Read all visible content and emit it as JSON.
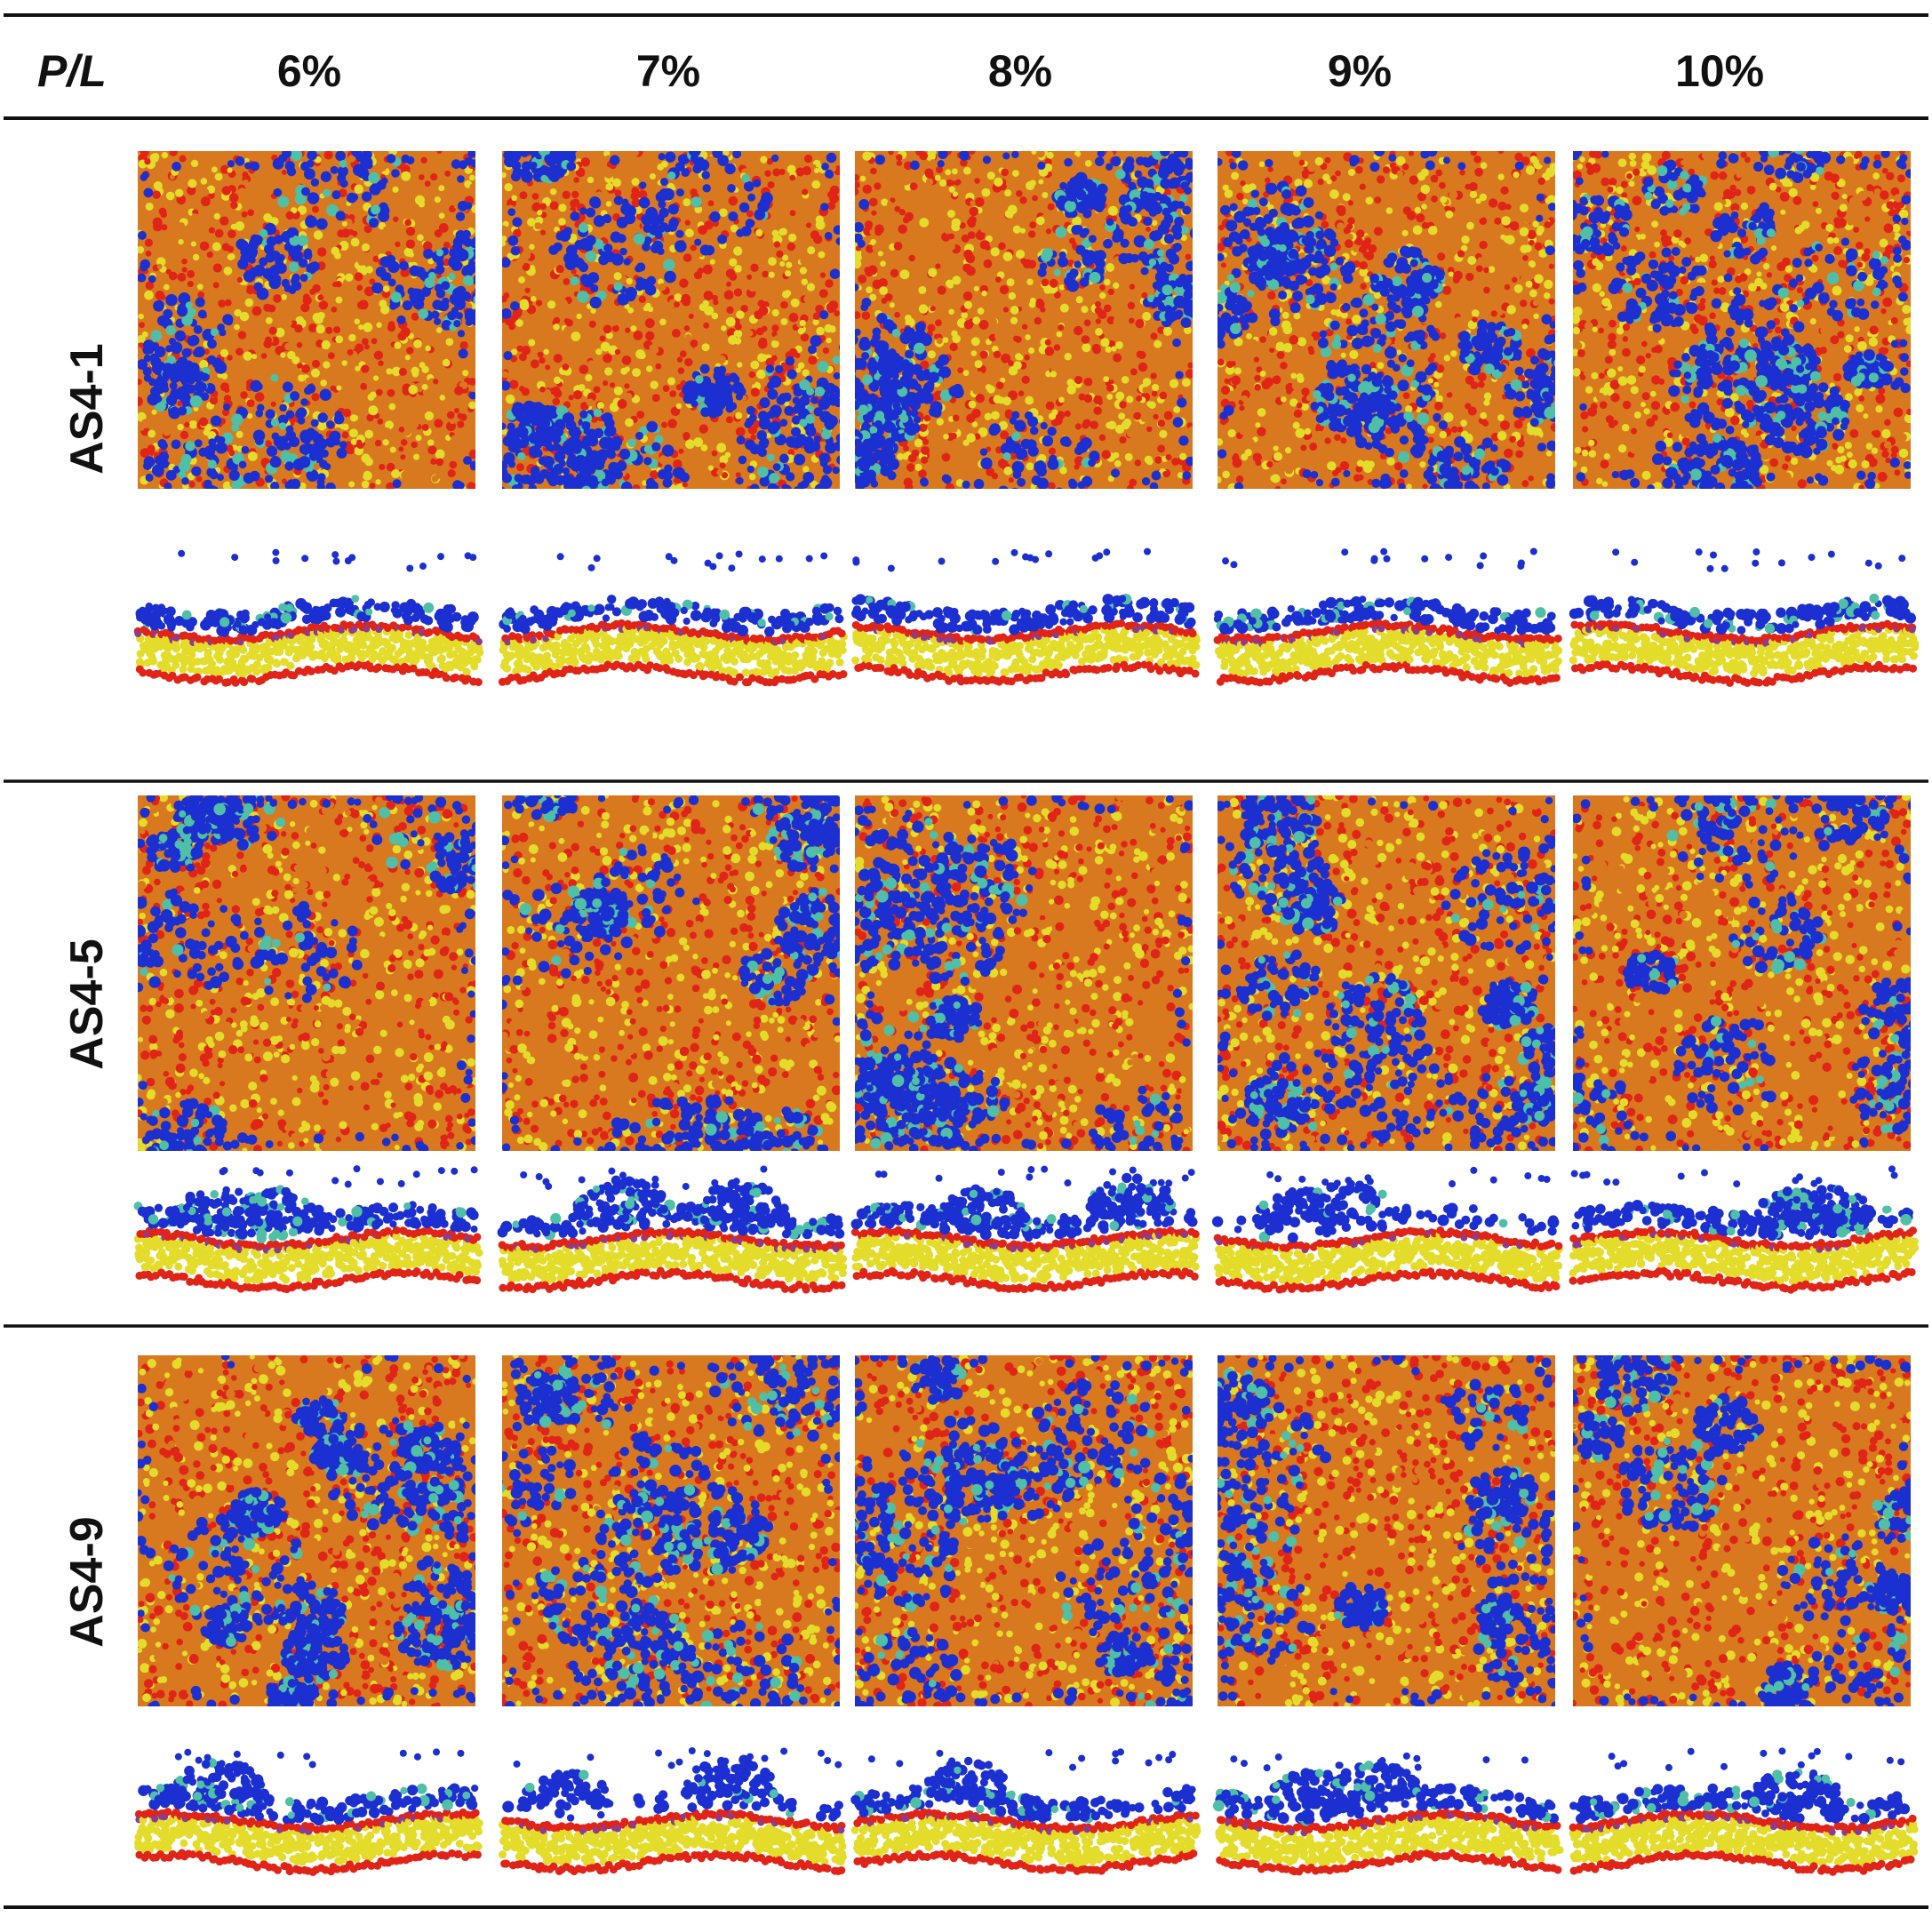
{
  "figure": {
    "header": {
      "corner_label": "P/L",
      "columns": [
        "6%",
        "7%",
        "8%",
        "9%",
        "10%"
      ]
    },
    "rows": [
      {
        "label": "AS4-1"
      },
      {
        "label": "AS4-5"
      },
      {
        "label": "AS4-9"
      }
    ],
    "panel_views": [
      "top-view",
      "side-view"
    ],
    "colors": {
      "protein_blue": "#1c2fd0",
      "protein_cyan": "#4fbfa8",
      "lipid_head_red": "#e02418",
      "lipid_tail_yellow": "#e4dc2a",
      "lipid_orange": "#d9791f",
      "lipid_purple": "#8e3a8f",
      "rule_line": "#111111"
    }
  }
}
